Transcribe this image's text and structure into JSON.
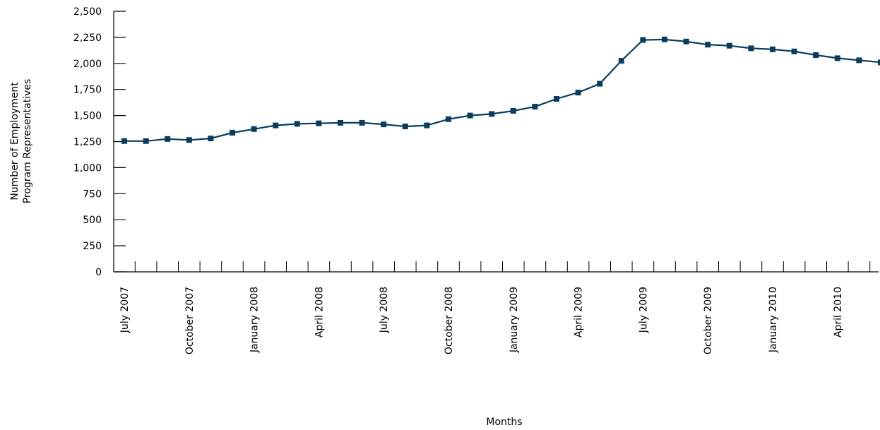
{
  "chart_data": {
    "type": "line",
    "xlabel": "Months",
    "ylabel_lines": [
      "Number of Employment",
      "Program Representatives"
    ],
    "ylim": [
      0,
      2500
    ],
    "yticks": [
      "0",
      "250",
      "500",
      "750",
      "1,000",
      "1,250",
      "1,500",
      "1,750",
      "2,000",
      "2,250",
      "2,500"
    ],
    "ytick_values": [
      0,
      250,
      500,
      750,
      1000,
      1250,
      1500,
      1750,
      2000,
      2250,
      2500
    ],
    "x_labels": [
      {
        "label": "July 2007",
        "index": 0
      },
      {
        "label": "October 2007",
        "index": 3
      },
      {
        "label": "January 2008",
        "index": 6
      },
      {
        "label": "April 2008",
        "index": 9
      },
      {
        "label": "July 2008",
        "index": 12
      },
      {
        "label": "October 2008",
        "index": 15
      },
      {
        "label": "January 2009",
        "index": 18
      },
      {
        "label": "April 2009",
        "index": 21
      },
      {
        "label": "July 2009",
        "index": 24
      },
      {
        "label": "October 2009",
        "index": 27
      },
      {
        "label": "January 2010",
        "index": 30
      },
      {
        "label": "April 2010",
        "index": 33
      }
    ],
    "months": [
      "Jul 2007",
      "Aug 2007",
      "Sep 2007",
      "Oct 2007",
      "Nov 2007",
      "Dec 2007",
      "Jan 2008",
      "Feb 2008",
      "Mar 2008",
      "Apr 2008",
      "May 2008",
      "Jun 2008",
      "Jul 2008",
      "Aug 2008",
      "Sep 2008",
      "Oct 2008",
      "Nov 2008",
      "Dec 2008",
      "Jan 2009",
      "Feb 2009",
      "Mar 2009",
      "Apr 2009",
      "May 2009",
      "Jun 2009",
      "Jul 2009",
      "Aug 2009",
      "Sep 2009",
      "Oct 2009",
      "Nov 2009",
      "Dec 2009",
      "Jan 2010",
      "Feb 2010",
      "Mar 2010",
      "Apr 2010",
      "May 2010",
      "Jun 2010"
    ],
    "series": [
      {
        "values": [
          1255,
          1255,
          1275,
          1265,
          1280,
          1335,
          1370,
          1405,
          1420,
          1425,
          1430,
          1430,
          1415,
          1395,
          1405,
          1465,
          1500,
          1515,
          1545,
          1585,
          1660,
          1720,
          1805,
          2025,
          2225,
          2230,
          2210,
          2180,
          2170,
          2145,
          2135,
          2115,
          2080,
          2050,
          2030,
          2010
        ]
      }
    ],
    "colors": {
      "line": "#0b3c5d",
      "marker": "#0b3c5d",
      "axis": "#000000"
    },
    "grid": false
  }
}
